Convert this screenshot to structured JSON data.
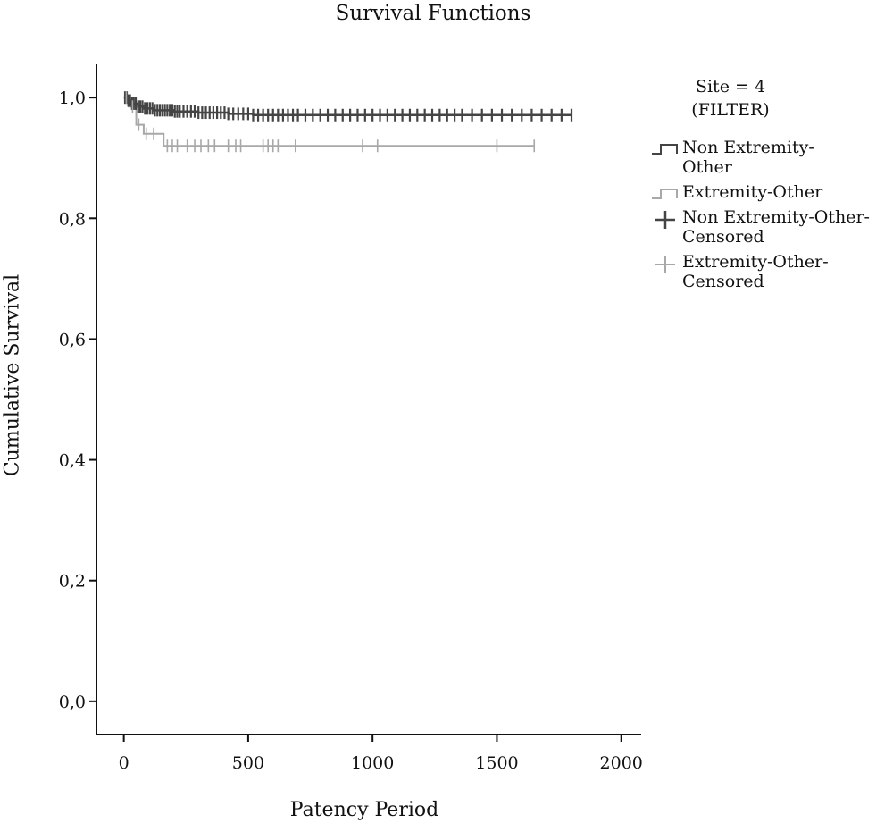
{
  "chart_data": {
    "type": "line",
    "title": "Survival Functions",
    "xlabel": "Patency Period",
    "ylabel": "Cumulative Survival",
    "xlim": [
      -110,
      2080
    ],
    "ylim": [
      -0.055,
      1.055
    ],
    "x_ticks": [
      0,
      500,
      1000,
      1500,
      2000
    ],
    "x_tick_labels": [
      "0",
      "500",
      "1000",
      "1500",
      "2000"
    ],
    "y_ticks": [
      0.0,
      0.2,
      0.4,
      0.6,
      0.8,
      1.0
    ],
    "y_tick_labels": [
      "0,0",
      "0,2",
      "0,4",
      "0,6",
      "0,8",
      "1,0"
    ],
    "grid": false,
    "legend_title": [
      "Site = 4",
      "(FILTER)"
    ],
    "legend_position": "right",
    "series": [
      {
        "name": "Non Extremity-Other",
        "kind": "step",
        "color": "#444444",
        "points": [
          [
            0,
            1.0
          ],
          [
            15,
            0.995
          ],
          [
            30,
            0.99
          ],
          [
            55,
            0.985
          ],
          [
            80,
            0.982
          ],
          [
            120,
            0.979
          ],
          [
            200,
            0.977
          ],
          [
            300,
            0.975
          ],
          [
            420,
            0.973
          ],
          [
            520,
            0.971
          ],
          [
            1800,
            0.971
          ]
        ]
      },
      {
        "name": "Extremity-Other",
        "kind": "step",
        "color": "#a8a8a8",
        "points": [
          [
            0,
            1.0
          ],
          [
            20,
            0.985
          ],
          [
            50,
            0.955
          ],
          [
            80,
            0.94
          ],
          [
            160,
            0.92
          ],
          [
            1650,
            0.92
          ]
        ]
      },
      {
        "name": "Non Extremity-Other-Censored",
        "kind": "censor",
        "color": "#444444",
        "x": [
          5,
          12,
          18,
          25,
          33,
          40,
          48,
          58,
          66,
          75,
          85,
          95,
          105,
          115,
          125,
          135,
          145,
          155,
          165,
          175,
          185,
          195,
          205,
          215,
          225,
          240,
          255,
          270,
          285,
          300,
          315,
          330,
          345,
          360,
          375,
          390,
          405,
          420,
          440,
          460,
          480,
          500,
          520,
          540,
          560,
          580,
          600,
          620,
          640,
          660,
          680,
          700,
          730,
          760,
          790,
          820,
          850,
          880,
          910,
          940,
          970,
          1000,
          1030,
          1060,
          1090,
          1120,
          1150,
          1180,
          1210,
          1240,
          1270,
          1300,
          1330,
          1360,
          1400,
          1440,
          1480,
          1520,
          1560,
          1600,
          1640,
          1680,
          1720,
          1760,
          1800
        ]
      },
      {
        "name": "Extremity-Other-Censored",
        "kind": "censor",
        "color": "#a8a8a8",
        "x": [
          10,
          35,
          60,
          90,
          120,
          175,
          195,
          215,
          255,
          285,
          310,
          340,
          365,
          420,
          450,
          470,
          560,
          580,
          600,
          620,
          690,
          960,
          1020,
          1500,
          1650
        ]
      }
    ]
  }
}
